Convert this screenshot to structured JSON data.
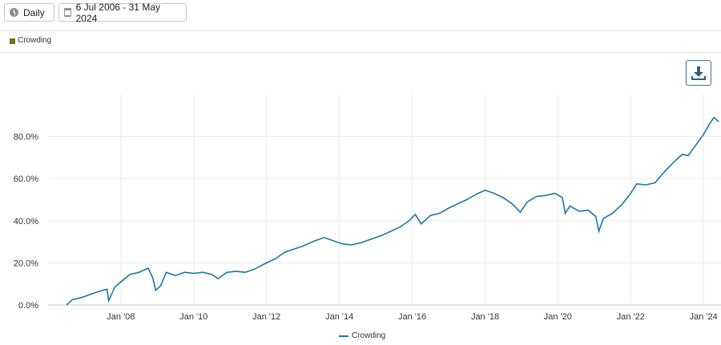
{
  "toolbar": {
    "frequency_label": "Daily",
    "date_range_label": "6 Jul 2006 - 31 May 2024",
    "frequency_icon": "clock-icon",
    "date_icon": "calendar-icon"
  },
  "legend_top": {
    "label": "Crowding",
    "color": "#7d6b1e"
  },
  "download_icon": "download-icon",
  "chart_data": {
    "type": "line",
    "title": "",
    "xlabel": "",
    "ylabel": "",
    "ylim": [
      0,
      100
    ],
    "y_ticks": [
      "0.0%",
      "20.0%",
      "40.0%",
      "60.0%",
      "80.0%"
    ],
    "y_tick_values": [
      0,
      20,
      40,
      60,
      80
    ],
    "x_ticks": [
      "Jan '08",
      "Jan '10",
      "Jan '12",
      "Jan '14",
      "Jan '16",
      "Jan '18",
      "Jan '20",
      "Jan '22",
      "Jan '24"
    ],
    "x_tick_dates": [
      "2008-01-01",
      "2010-01-01",
      "2012-01-01",
      "2014-01-01",
      "2016-01-01",
      "2018-01-01",
      "2020-01-01",
      "2022-01-01",
      "2024-01-01"
    ],
    "x_range": [
      "2006-07-06",
      "2024-05-31"
    ],
    "grid": true,
    "legend_position": "bottom",
    "series": [
      {
        "name": "Crowding",
        "color": "#1b75a9",
        "points": [
          [
            "2006-07-06",
            0.0
          ],
          [
            "2006-09-01",
            2.5
          ],
          [
            "2006-12-01",
            3.5
          ],
          [
            "2007-03-01",
            5.0
          ],
          [
            "2007-06-01",
            6.5
          ],
          [
            "2007-08-15",
            7.5
          ],
          [
            "2007-09-01",
            2.0
          ],
          [
            "2007-11-01",
            8.5
          ],
          [
            "2008-01-01",
            11.0
          ],
          [
            "2008-04-01",
            14.5
          ],
          [
            "2008-07-01",
            15.5
          ],
          [
            "2008-10-01",
            17.5
          ],
          [
            "2008-11-15",
            13.0
          ],
          [
            "2008-12-15",
            7.0
          ],
          [
            "2009-02-01",
            9.0
          ],
          [
            "2009-04-01",
            15.5
          ],
          [
            "2009-07-01",
            14.0
          ],
          [
            "2009-10-01",
            15.5
          ],
          [
            "2010-01-01",
            15.0
          ],
          [
            "2010-04-01",
            15.5
          ],
          [
            "2010-07-01",
            14.5
          ],
          [
            "2010-09-01",
            12.5
          ],
          [
            "2010-12-01",
            15.5
          ],
          [
            "2011-03-01",
            16.0
          ],
          [
            "2011-06-01",
            15.5
          ],
          [
            "2011-09-01",
            17.0
          ],
          [
            "2012-01-01",
            20.0
          ],
          [
            "2012-04-01",
            22.0
          ],
          [
            "2012-07-01",
            25.0
          ],
          [
            "2012-10-01",
            26.5
          ],
          [
            "2013-01-01",
            28.0
          ],
          [
            "2013-05-01",
            30.5
          ],
          [
            "2013-08-01",
            32.0
          ],
          [
            "2013-11-01",
            30.5
          ],
          [
            "2014-02-01",
            29.0
          ],
          [
            "2014-05-01",
            28.5
          ],
          [
            "2014-08-01",
            29.5
          ],
          [
            "2014-11-01",
            31.0
          ],
          [
            "2015-03-01",
            33.0
          ],
          [
            "2015-06-01",
            35.0
          ],
          [
            "2015-09-01",
            37.0
          ],
          [
            "2015-12-01",
            40.0
          ],
          [
            "2016-02-01",
            43.0
          ],
          [
            "2016-04-01",
            38.5
          ],
          [
            "2016-07-01",
            42.5
          ],
          [
            "2016-10-01",
            43.5
          ],
          [
            "2017-01-01",
            46.0
          ],
          [
            "2017-04-01",
            48.0
          ],
          [
            "2017-07-01",
            50.0
          ],
          [
            "2017-10-01",
            52.5
          ],
          [
            "2018-01-01",
            54.5
          ],
          [
            "2018-04-01",
            53.0
          ],
          [
            "2018-07-01",
            51.0
          ],
          [
            "2018-10-01",
            48.0
          ],
          [
            "2018-12-20",
            44.0
          ],
          [
            "2019-03-01",
            49.0
          ],
          [
            "2019-06-01",
            51.5
          ],
          [
            "2019-09-01",
            52.0
          ],
          [
            "2019-12-01",
            53.0
          ],
          [
            "2020-02-15",
            51.0
          ],
          [
            "2020-03-15",
            43.5
          ],
          [
            "2020-05-01",
            47.0
          ],
          [
            "2020-08-01",
            44.5
          ],
          [
            "2020-11-01",
            45.0
          ],
          [
            "2021-01-15",
            42.0
          ],
          [
            "2021-02-15",
            35.0
          ],
          [
            "2021-04-01",
            41.0
          ],
          [
            "2021-07-01",
            43.5
          ],
          [
            "2021-10-01",
            47.5
          ],
          [
            "2022-01-01",
            53.0
          ],
          [
            "2022-03-01",
            57.5
          ],
          [
            "2022-06-01",
            57.0
          ],
          [
            "2022-09-01",
            58.0
          ],
          [
            "2022-12-01",
            63.0
          ],
          [
            "2023-03-01",
            67.5
          ],
          [
            "2023-06-01",
            71.5
          ],
          [
            "2023-08-01",
            71.0
          ],
          [
            "2023-10-01",
            75.0
          ],
          [
            "2024-01-01",
            81.0
          ],
          [
            "2024-03-01",
            86.0
          ],
          [
            "2024-04-15",
            89.0
          ],
          [
            "2024-05-31",
            87.0
          ]
        ]
      }
    ]
  },
  "legend_bottom": {
    "label": "Crowding",
    "color": "#1b75a9"
  }
}
